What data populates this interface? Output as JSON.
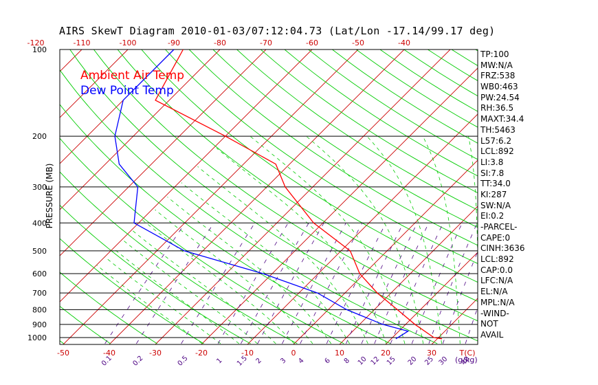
{
  "title": "AIRS SkewT Diagram 2010-01-03/07:12:04.73 (Lat/Lon -17.14/99.17 deg)",
  "legend": {
    "air_label": "Ambient Air Temp",
    "dew_label": "Dew Point Temp"
  },
  "colors": {
    "air": "#ff0000",
    "dew": "#0000ff",
    "isotherm": "#cc0000",
    "dry_adiabat": "#00cc00",
    "moist_adiabat": "#00cc00",
    "mixing_ratio": "#4b0082",
    "top_axis": "#cc0000",
    "bottom_axis": "#cc0000",
    "mixing_axis": "#4b0082"
  },
  "stats": [
    "TP:100",
    "MW:N/A",
    "FRZ:538",
    "WB0:463",
    "PW:24.54",
    "RH:36.5",
    "MAXT:34.4",
    "TH:5463",
    "L57:6.2",
    "LCL:892",
    "LI:3.8",
    "SI:7.8",
    "TT:34.0",
    "KI:287",
    "SW:N/A",
    "EI:0.2",
    "-PARCEL-",
    "CAPE:0",
    "CINH:3636",
    "LCL:892",
    "CAP:0.0",
    "LFC:N/A",
    "EL:N/A",
    "MPL:N/A",
    "-WIND-",
    "NOT",
    "AVAIL"
  ],
  "chart_data": {
    "type": "line",
    "chart_kind": "skew-T log-P",
    "ylabel": "PRESSURE (MB)",
    "y_scale": "log",
    "ylim": [
      1050,
      100
    ],
    "pressure_ticks": [
      100,
      200,
      300,
      400,
      500,
      600,
      700,
      800,
      900,
      1000
    ],
    "top_temp_ticks": [
      -120,
      -110,
      -100,
      -90,
      -80,
      -70,
      -60,
      -50,
      -40
    ],
    "bottom_temp_ticks": [
      -50,
      -40,
      -30,
      -20,
      -10,
      0,
      10,
      20,
      30
    ],
    "bottom_temp_label": "T(C)",
    "mixing_ratio_ticks": [
      "0.1",
      "0.2",
      "0.5",
      "1",
      "1.5",
      "2",
      "3",
      "4",
      "6",
      "8",
      "10",
      "12",
      "15",
      "20",
      "25",
      "30",
      "40"
    ],
    "mixing_ratio_label": "(g/kg)",
    "series": [
      {
        "name": "Ambient Air Temp",
        "color": "#ff0000",
        "points": [
          {
            "p": 100,
            "t": -88
          },
          {
            "p": 150,
            "t": -83
          },
          {
            "p": 200,
            "t": -60
          },
          {
            "p": 250,
            "t": -43
          },
          {
            "p": 300,
            "t": -36
          },
          {
            "p": 400,
            "t": -22
          },
          {
            "p": 500,
            "t": -8
          },
          {
            "p": 600,
            "t": -1
          },
          {
            "p": 700,
            "t": 7
          },
          {
            "p": 800,
            "t": 15
          },
          {
            "p": 900,
            "t": 22
          },
          {
            "p": 1000,
            "t": 29
          },
          {
            "p": 1010,
            "t": 31
          }
        ]
      },
      {
        "name": "Dew Point Temp",
        "color": "#0000ff",
        "points": [
          {
            "p": 100,
            "t": -90
          },
          {
            "p": 150,
            "t": -90
          },
          {
            "p": 200,
            "t": -84
          },
          {
            "p": 250,
            "t": -77
          },
          {
            "p": 300,
            "t": -68
          },
          {
            "p": 400,
            "t": -61
          },
          {
            "p": 500,
            "t": -44
          },
          {
            "p": 600,
            "t": -22
          },
          {
            "p": 700,
            "t": -6
          },
          {
            "p": 800,
            "t": 4
          },
          {
            "p": 900,
            "t": 15
          },
          {
            "p": 950,
            "t": 22
          },
          {
            "p": 1010,
            "t": 21
          }
        ]
      }
    ]
  }
}
